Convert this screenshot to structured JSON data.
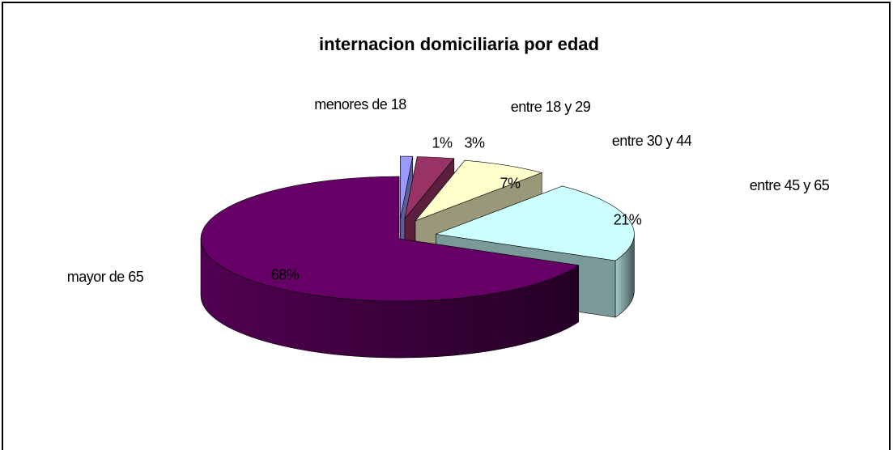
{
  "chart_data": {
    "type": "pie",
    "title": "internacion domiciliaria por edad",
    "categories": [
      "menores de 18",
      "entre 18 y 29",
      "entre 30 y 44",
      "entre 45 y 65",
      "mayor de 65"
    ],
    "values": [
      1,
      3,
      7,
      21,
      68
    ],
    "value_labels": [
      "1%",
      "3%",
      "7%",
      "21%",
      "68%"
    ],
    "colors": [
      "#9999ff",
      "#993366",
      "#ffffcc",
      "#ccffff",
      "#660066"
    ],
    "three_d": true
  }
}
